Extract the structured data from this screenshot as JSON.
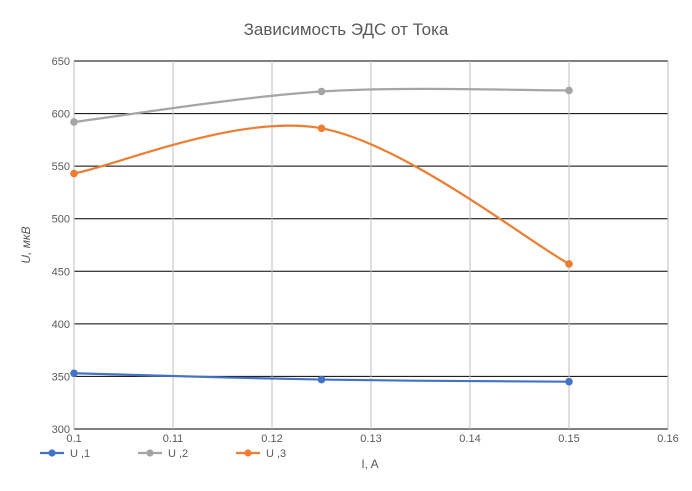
{
  "chart_data": {
    "type": "scatter-smooth",
    "title": "Зависимость ЭДС от Тока",
    "xlabel": "I, A",
    "ylabel": "U, мкВ",
    "xlim": [
      0.1,
      0.16
    ],
    "ylim": [
      300,
      650
    ],
    "xticks": [
      "0.1",
      "0.11",
      "0.12",
      "0.13",
      "0.14",
      "0.15",
      "0.16"
    ],
    "yticks": [
      "300",
      "350",
      "400",
      "450",
      "500",
      "550",
      "600",
      "650"
    ],
    "grid": true,
    "legend_position": "bottom-left",
    "series": [
      {
        "name": "U ,1",
        "color": "#4472C4",
        "x": [
          0.1,
          0.125,
          0.15
        ],
        "y": [
          353,
          347,
          345
        ]
      },
      {
        "name": "U ,2",
        "color": "#A5A5A5",
        "x": [
          0.1,
          0.125,
          0.15
        ],
        "y": [
          592,
          621,
          622
        ]
      },
      {
        "name": "U ,3",
        "color": "#ED7D31",
        "x": [
          0.1,
          0.125,
          0.15
        ],
        "y": [
          543,
          586,
          457
        ]
      }
    ]
  }
}
